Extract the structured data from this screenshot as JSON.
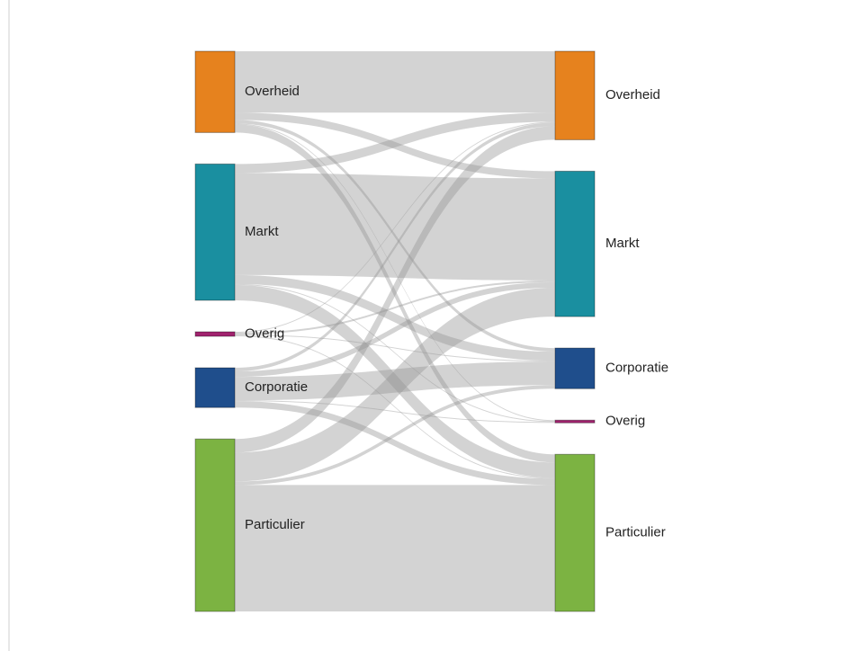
{
  "chart_data": {
    "type": "sankey",
    "left_nodes": [
      {
        "name": "Overheid",
        "color": "#e6821e",
        "values": [
          68,
          8,
          4,
          1,
          9
        ]
      },
      {
        "name": "Markt",
        "color": "#1a8fa0",
        "values": [
          10,
          113,
          10,
          1,
          17
        ]
      },
      {
        "name": "Overig",
        "color": "#a0236e",
        "values": [
          1,
          2,
          1,
          0,
          1
        ]
      },
      {
        "name": "Corporatie",
        "color": "#1f4e8c",
        "values": [
          4,
          6,
          26,
          1,
          7
        ]
      },
      {
        "name": "Particulier",
        "color": "#7cb342",
        "values": [
          15,
          32,
          4,
          0,
          140
        ]
      }
    ],
    "right_nodes": [
      {
        "name": "Overheid",
        "color": "#e6821e"
      },
      {
        "name": "Markt",
        "color": "#1a8fa0"
      },
      {
        "name": "Corporatie",
        "color": "#1f4e8c"
      },
      {
        "name": "Overig",
        "color": "#a0236e"
      },
      {
        "name": "Particulier",
        "color": "#7cb342"
      }
    ]
  }
}
